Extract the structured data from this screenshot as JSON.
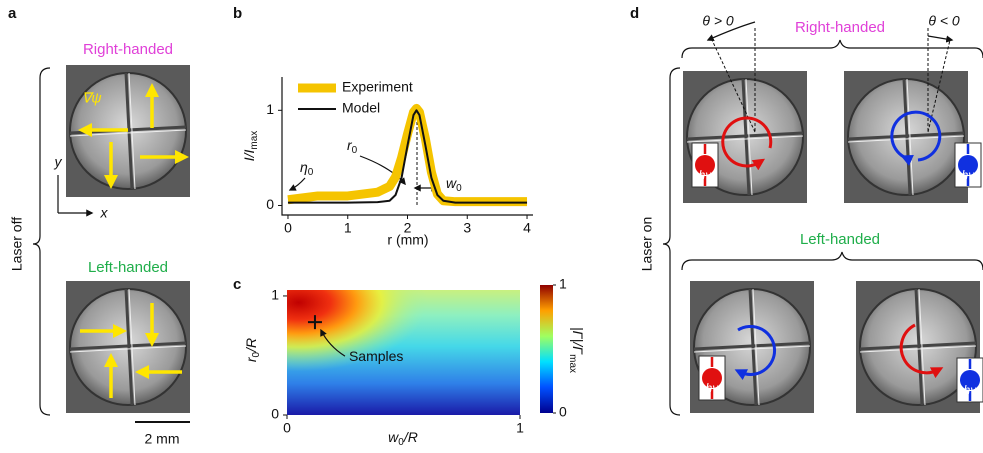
{
  "panel_labels": [
    "a",
    "b",
    "c",
    "d"
  ],
  "panel_a": {
    "top_title": "Right-handed",
    "bottom_title": "Left-handed",
    "side_label": "Laser off",
    "gradient_label": "∇ψ",
    "axis_x": "x",
    "axis_y": "y",
    "scale_bar": "2 mm"
  },
  "chart_data": [
    {
      "type": "line",
      "y_label": {
        "main": "I/I",
        "sub": "max"
      },
      "x_label": "r (mm)",
      "x": [
        0,
        0.5,
        1,
        1.5,
        1.7,
        1.8,
        1.9,
        2.0,
        2.1,
        2.15,
        2.2,
        2.3,
        2.4,
        2.5,
        2.6,
        2.8,
        3,
        3.5,
        4
      ],
      "series": [
        {
          "name": "Experiment",
          "color": "#f5c400",
          "values": [
            0.06,
            0.1,
            0.1,
            0.14,
            0.2,
            0.3,
            0.5,
            0.75,
            0.98,
            1.02,
            0.98,
            0.7,
            0.35,
            0.12,
            0.05,
            0.04,
            0.04,
            0.04,
            0.04
          ]
        },
        {
          "name": "Model",
          "color": "#111111",
          "values": [
            0.03,
            0.03,
            0.03,
            0.035,
            0.05,
            0.11,
            0.29,
            0.63,
            0.95,
            1.0,
            0.95,
            0.63,
            0.29,
            0.11,
            0.05,
            0.03,
            0.03,
            0.03,
            0.03
          ]
        }
      ],
      "xlim": [
        -0.1,
        4.1
      ],
      "ylim": [
        -0.1,
        1.35
      ],
      "xticks": [
        0,
        1,
        2,
        3,
        4
      ],
      "yticks": [
        0,
        1
      ],
      "annotations": [
        {
          "main": "η",
          "sub": "0"
        },
        {
          "main": "r",
          "sub": "0"
        },
        {
          "main": "w",
          "sub": "0"
        }
      ]
    },
    {
      "type": "heatmap",
      "x_label": {
        "main": "w",
        "sub": "0",
        "tail": "/R"
      },
      "y_label": {
        "main": "r",
        "sub": "0",
        "tail": "/R"
      },
      "colorbar_label": {
        "main": "|Γ|/Γ",
        "sub": "max"
      },
      "xlim": [
        0,
        1
      ],
      "ylim": [
        0,
        1.05
      ],
      "xticks": [
        0,
        1
      ],
      "yticks": [
        0,
        1
      ],
      "colorbar_lim": [
        0,
        1
      ],
      "colorbar_ticks": [
        0,
        1
      ],
      "marker": {
        "x": 0.12,
        "y": 0.78
      },
      "marker_label": "Samples"
    }
  ],
  "panel_d": {
    "top_title": "Right-handed",
    "bottom_title": "Left-handed",
    "side_label": "Laser on",
    "angle_labels": [
      "θ > 0",
      "θ < 0"
    ],
    "photon_label": "hν"
  }
}
